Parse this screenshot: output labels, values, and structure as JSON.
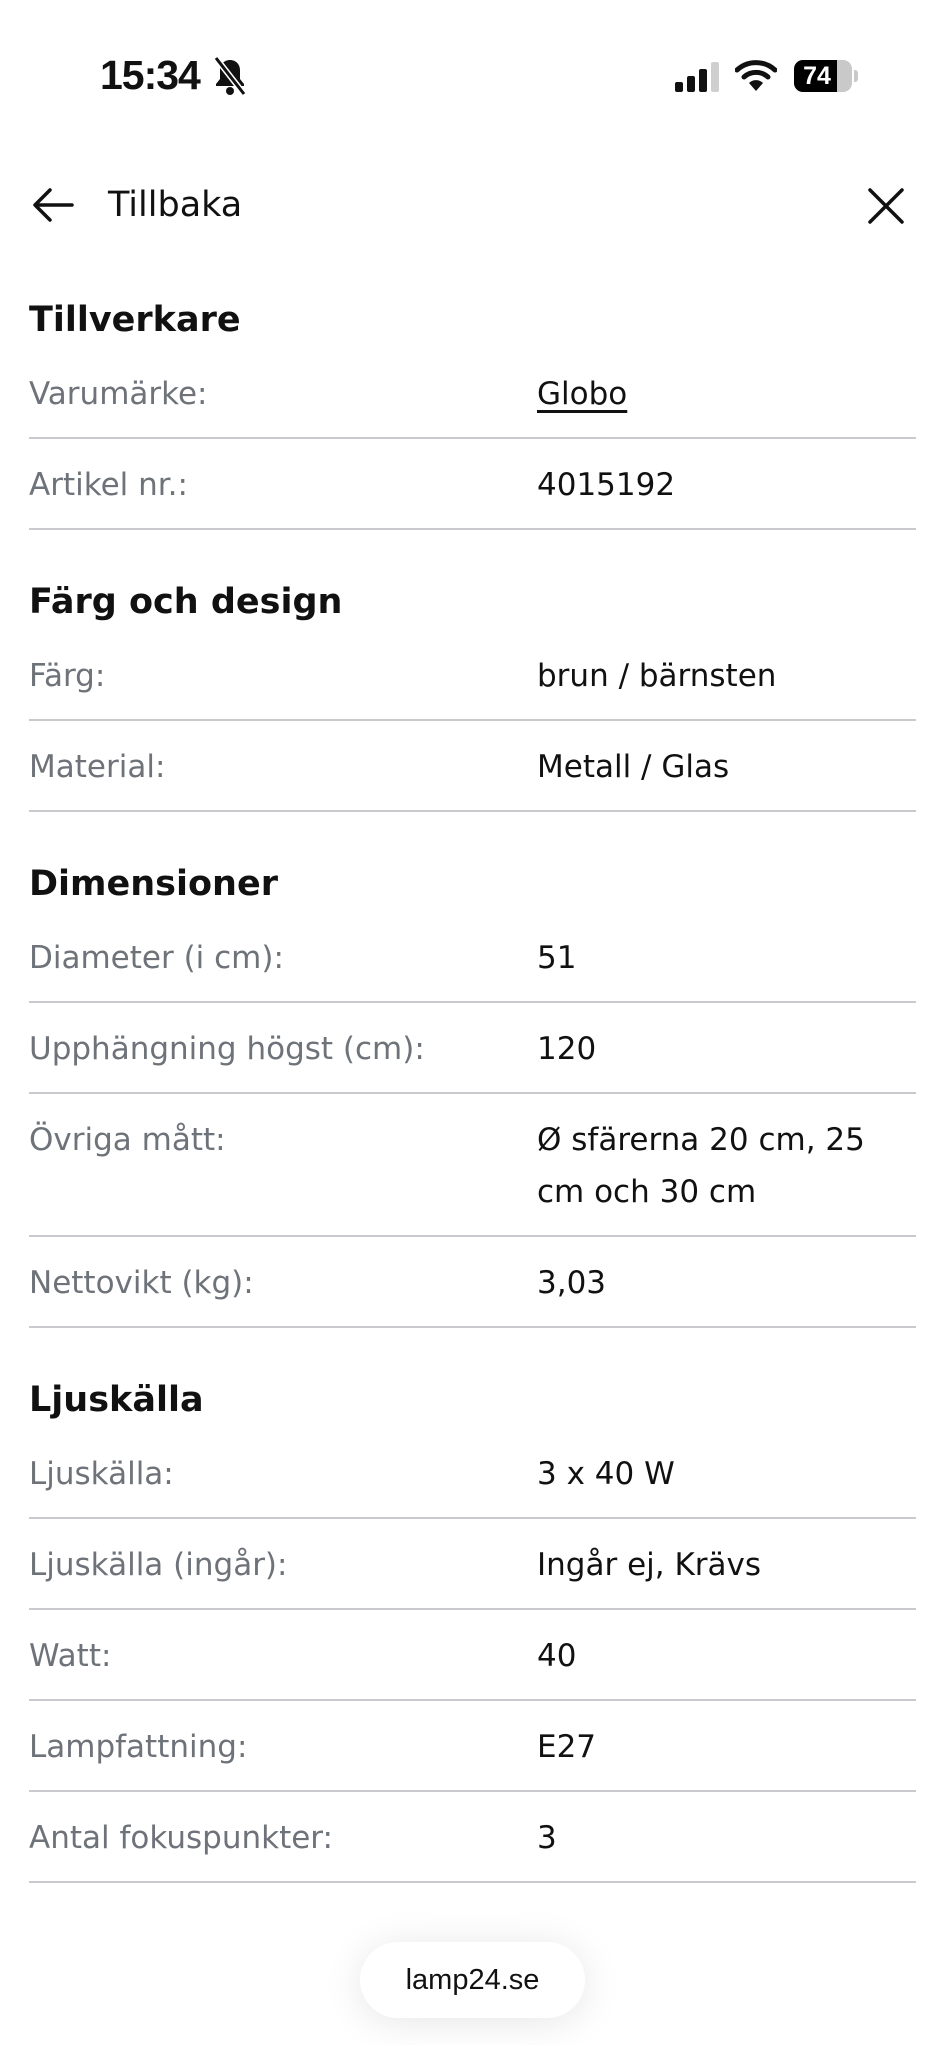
{
  "status_bar": {
    "time": "15:34",
    "battery": "74",
    "battery_level": 74,
    "icons": [
      "bell-slash-icon",
      "signal-icon",
      "wifi-icon",
      "battery-icon"
    ]
  },
  "header": {
    "back_label": "Tillbaka",
    "back_icon": "arrow-left-icon",
    "close_icon": "close-icon"
  },
  "sections": [
    {
      "title": "Tillverkare",
      "rows": [
        {
          "label": "Varumärke:",
          "value": "Globo"
        },
        {
          "label": "Artikel nr.:",
          "value": "4015192"
        }
      ]
    },
    {
      "title": "Färg och design",
      "rows": [
        {
          "label": "Färg:",
          "value": "brun / bärnsten"
        },
        {
          "label": "Material:",
          "value": "Metall / Glas"
        }
      ]
    },
    {
      "title": "Dimensioner",
      "rows": [
        {
          "label": "Diameter (i cm):",
          "value": "51"
        },
        {
          "label": "Upphängning högst (cm):",
          "value": "120"
        },
        {
          "label": "Övriga mått:",
          "value": "Ø sfärerna 20 cm, 25 cm och 30 cm"
        },
        {
          "label": "Nettovikt (kg):",
          "value": "3,03"
        }
      ]
    },
    {
      "title": "Ljuskälla",
      "rows": [
        {
          "label": "Ljuskälla:",
          "value": "3 x 40 W"
        },
        {
          "label": "Ljuskälla (ingår):",
          "value": "Ingår ej, Krävs"
        },
        {
          "label": "Watt:",
          "value": "40"
        },
        {
          "label": "Lampfattning:",
          "value": "E27"
        },
        {
          "label": "Antal fokuspunkter:",
          "value": "3"
        }
      ]
    }
  ],
  "footer": {
    "domain": "lamp24.se"
  },
  "colors": {
    "label": "#6e737a",
    "divider": "#c8cacd",
    "text": "#111111"
  }
}
